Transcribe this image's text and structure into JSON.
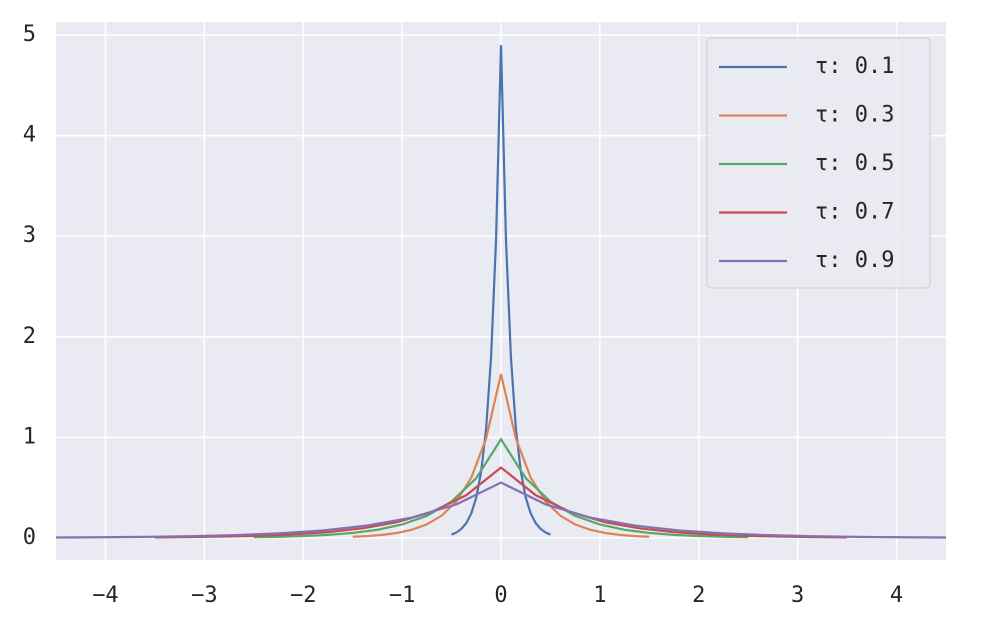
{
  "chart_data": {
    "type": "line",
    "xlim": [
      -4.5,
      4.5
    ],
    "ylim": [
      -0.22,
      5.13
    ],
    "xticks": [
      {
        "value": -4,
        "label": "−4"
      },
      {
        "value": -3,
        "label": "−3"
      },
      {
        "value": -2,
        "label": "−2"
      },
      {
        "value": -1,
        "label": "−1"
      },
      0,
      1,
      2,
      3,
      4
    ],
    "yticks": [
      0,
      1,
      2,
      3,
      4,
      5
    ],
    "grid": true,
    "legend": "upper right",
    "series": [
      {
        "name": "τ: 0.1",
        "color": "#4c72b0",
        "x": [
          -0.5,
          -0.45,
          -0.4,
          -0.35,
          -0.3,
          -0.25,
          -0.2,
          -0.15,
          -0.1,
          -0.05,
          0,
          0.05,
          0.1,
          0.15,
          0.2,
          0.25,
          0.3,
          0.35,
          0.4,
          0.45,
          0.5
        ],
        "values": [
          0.033,
          0.054,
          0.09,
          0.148,
          0.244,
          0.402,
          0.663,
          1.093,
          1.803,
          2.972,
          4.9,
          2.972,
          1.803,
          1.093,
          0.663,
          0.402,
          0.244,
          0.148,
          0.09,
          0.054,
          0.033
        ]
      },
      {
        "name": "τ: 0.3",
        "color": "#dd8452",
        "x": [
          -1.5,
          -1.35,
          -1.2,
          -1.05,
          -0.9,
          -0.75,
          -0.6,
          -0.45,
          -0.3,
          -0.15,
          0,
          0.15,
          0.3,
          0.45,
          0.6,
          0.75,
          0.9,
          1.05,
          1.2,
          1.35,
          1.5
        ],
        "values": [
          0.011,
          0.018,
          0.03,
          0.049,
          0.081,
          0.134,
          0.221,
          0.364,
          0.6,
          0.989,
          1.63,
          0.989,
          0.6,
          0.364,
          0.221,
          0.134,
          0.081,
          0.049,
          0.03,
          0.018,
          0.011
        ]
      },
      {
        "name": "τ: 0.5",
        "color": "#55a868",
        "x": [
          -2.5,
          -2.25,
          -2,
          -1.75,
          -1.5,
          -1.25,
          -1,
          -0.75,
          -0.5,
          -0.25,
          0,
          0.25,
          0.5,
          0.75,
          1,
          1.25,
          1.5,
          1.75,
          2,
          2.25,
          2.5
        ],
        "values": [
          0.007,
          0.011,
          0.018,
          0.03,
          0.049,
          0.08,
          0.133,
          0.219,
          0.361,
          0.594,
          0.98,
          0.594,
          0.361,
          0.219,
          0.133,
          0.08,
          0.049,
          0.03,
          0.018,
          0.011,
          0.007
        ]
      },
      {
        "name": "τ: 0.7",
        "color": "#c44e52",
        "x": [
          -3.5,
          -3.15,
          -2.8,
          -2.45,
          -2.1,
          -1.75,
          -1.4,
          -1.05,
          -0.7,
          -0.35,
          0,
          0.35,
          0.7,
          1.05,
          1.4,
          1.75,
          2.1,
          2.45,
          2.8,
          3.15,
          3.5
        ],
        "values": [
          0.005,
          0.008,
          0.013,
          0.021,
          0.035,
          0.057,
          0.095,
          0.156,
          0.258,
          0.425,
          0.7,
          0.425,
          0.258,
          0.156,
          0.095,
          0.057,
          0.035,
          0.021,
          0.013,
          0.008,
          0.005
        ]
      },
      {
        "name": "τ: 0.9",
        "color": "#8172b3",
        "x": [
          -4.5,
          -4.05,
          -3.6,
          -3.15,
          -2.7,
          -2.25,
          -1.8,
          -1.35,
          -0.9,
          -0.45,
          0,
          0.45,
          0.9,
          1.35,
          1.8,
          2.25,
          2.7,
          3.15,
          3.6,
          4.05,
          4.5
        ],
        "values": [
          0.004,
          0.006,
          0.01,
          0.017,
          0.027,
          0.045,
          0.074,
          0.123,
          0.202,
          0.334,
          0.55,
          0.334,
          0.202,
          0.123,
          0.074,
          0.045,
          0.027,
          0.017,
          0.01,
          0.006,
          0.004
        ]
      }
    ]
  }
}
